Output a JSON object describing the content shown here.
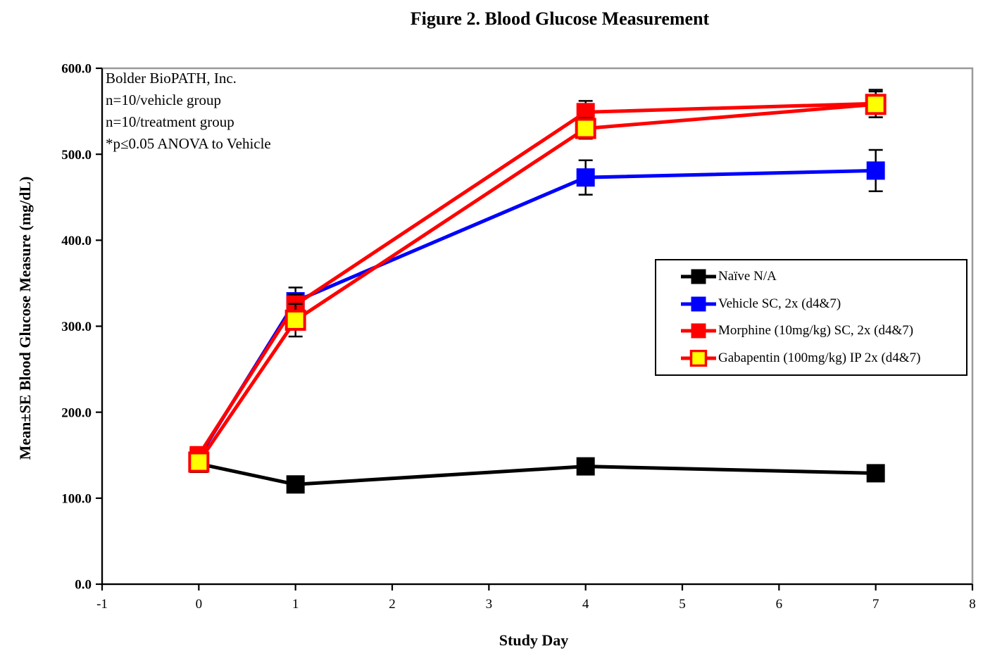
{
  "chart_data": {
    "type": "line",
    "title": "Figure 2. Blood Glucose Measurement",
    "xlabel": "Study Day",
    "ylabel": "Mean±SE Blood Glucose Measure (mg/dL)",
    "annotations": [
      "Bolder BioPATH, Inc.",
      "n=10/vehicle group",
      "n=10/treatment group",
      "*p≤0.05 ANOVA to Vehicle"
    ],
    "x": [
      0,
      1,
      4,
      7
    ],
    "xlim": [
      -1,
      8
    ],
    "ylim": [
      0,
      600
    ],
    "xticks": [
      -1,
      0,
      1,
      2,
      3,
      4,
      5,
      6,
      7,
      8
    ],
    "ytick_values": [
      0,
      100,
      200,
      300,
      400,
      500,
      600
    ],
    "ytick_labels": [
      "0.0",
      "100.0",
      "200.0",
      "300.0",
      "400.0",
      "500.0",
      "600.0"
    ],
    "grid": false,
    "legend_position": "inside-middle-right",
    "error_bars": "mean ± SE, black caps",
    "axis_color": "#000000",
    "plot_border_color": "#999999",
    "error_bar_color": "#000000",
    "series": [
      {
        "name": "Naïve N/A",
        "line_color": "#000000",
        "marker_fill": "#000000",
        "marker_border_color": null,
        "values": [
          140,
          116,
          137,
          129
        ],
        "se": [
          4,
          4,
          4,
          4
        ]
      },
      {
        "name": "Vehicle SC, 2x (d4&7)",
        "line_color": "#0000FF",
        "marker_fill": "#0000FF",
        "marker_border_color": null,
        "values": [
          148,
          329,
          473,
          481
        ],
        "se": [
          6,
          16,
          20,
          24
        ]
      },
      {
        "name": "Morphine (10mg/kg) SC, 2x (d4&7)",
        "line_color": "#FF0000",
        "marker_fill": "#FF0000",
        "marker_border_color": null,
        "values": [
          150,
          325,
          549,
          559
        ],
        "se": [
          6,
          12,
          13,
          16
        ]
      },
      {
        "name": "Gabapentin (100mg/kg) IP 2x (d4&7)",
        "line_color": "#FF0000",
        "marker_fill": "#FFFF00",
        "marker_border_color": "#FF0000",
        "values": [
          142,
          307,
          530,
          558
        ],
        "se": [
          6,
          19,
          12,
          15
        ]
      }
    ]
  }
}
